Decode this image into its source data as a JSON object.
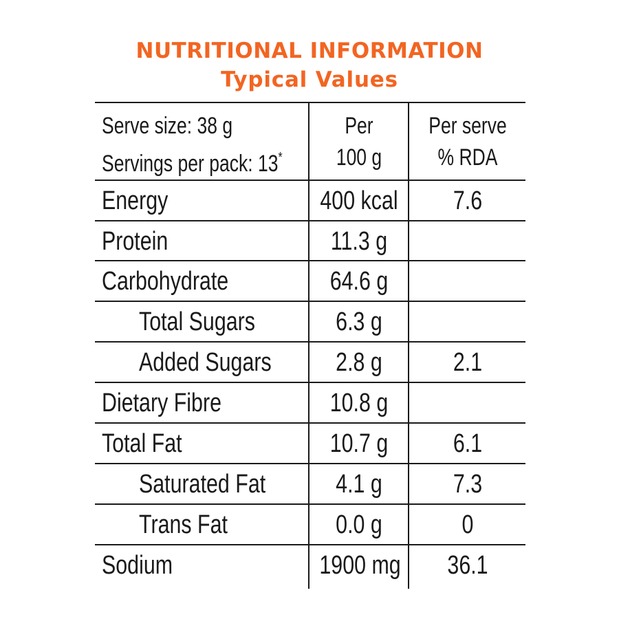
{
  "title": "NUTRITIONAL INFORMATION",
  "subtitle": "Typical Values",
  "header": {
    "serve_size": "Serve size: 38 g",
    "servings_per_pack": "Servings per pack: 13",
    "servings_mark": "*",
    "per_100g_line1": "Per",
    "per_100g_line2": "100 g",
    "rda_line1": "Per serve",
    "rda_line2": "% RDA"
  },
  "rows": [
    {
      "label": "Energy",
      "per_100g": "400 kcal",
      "rda": "7.6"
    },
    {
      "label": "Protein",
      "per_100g": "11.3 g",
      "rda": ""
    },
    {
      "label": "Carbohydrate",
      "per_100g": "64.6 g",
      "rda": ""
    },
    {
      "label": "Total Sugars",
      "per_100g": "6.3 g",
      "rda": ""
    },
    {
      "label": "Added Sugars",
      "per_100g": "2.8 g",
      "rda": "2.1"
    },
    {
      "label": "Dietary Fibre",
      "per_100g": "10.8 g",
      "rda": ""
    },
    {
      "label": "Total Fat",
      "per_100g": "10.7 g",
      "rda": "6.1"
    },
    {
      "label": "Saturated Fat",
      "per_100g": "4.1 g",
      "rda": "7.3"
    },
    {
      "label": "Trans Fat",
      "per_100g": "0.0 g",
      "rda": "0"
    },
    {
      "label": "Sodium",
      "per_100g": "1900 mg",
      "rda": "36.1"
    }
  ]
}
